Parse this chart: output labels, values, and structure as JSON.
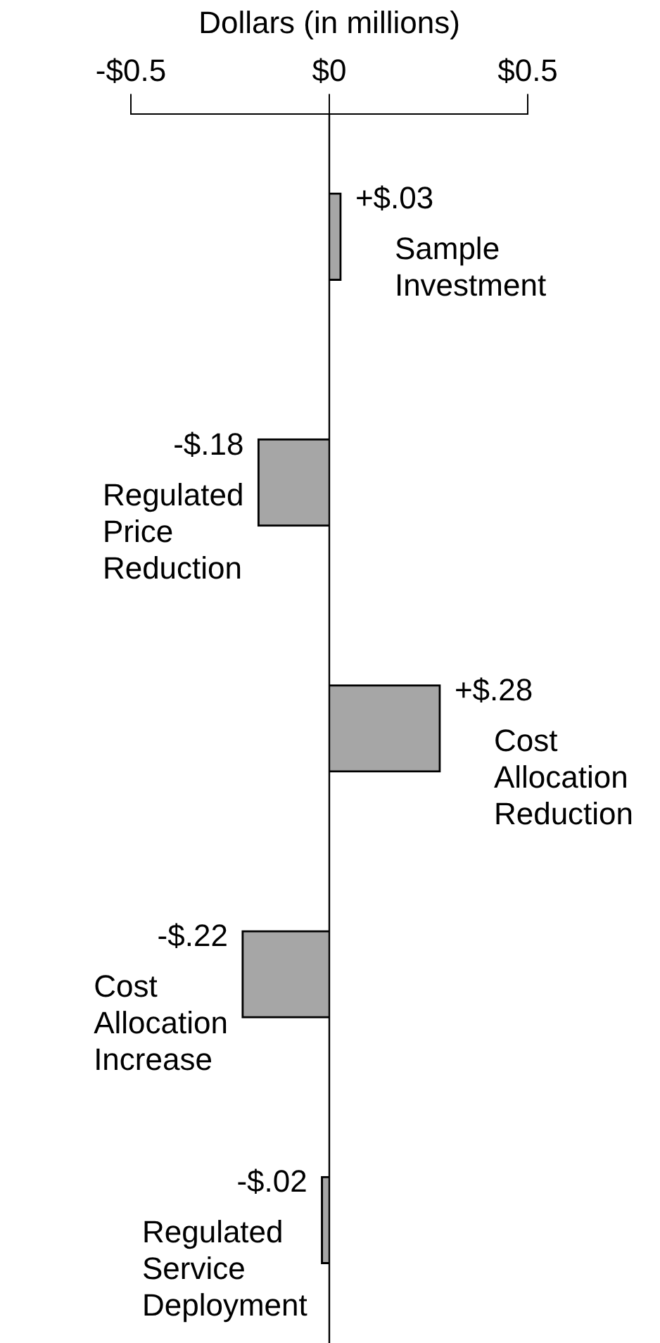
{
  "chart_data": {
    "type": "bar",
    "orientation": "horizontal",
    "xlabel": "Dollars (in millions)",
    "categories": [
      "Sample Investment",
      "Regulated Price Reduction",
      "Cost Allocation Reduction",
      "Cost Allocation Increase",
      "Regulated Service Deployment"
    ],
    "values": [
      0.03,
      -0.18,
      0.28,
      -0.22,
      -0.02
    ],
    "value_labels": [
      "+$.03",
      "-$.18",
      "+$.28",
      "-$.22",
      "-$.02"
    ],
    "color": "#a6a6a6",
    "xlim": [
      -0.5,
      0.5
    ],
    "xticks": [
      {
        "value": -0.5,
        "label": "-$0.5"
      },
      {
        "value": 0,
        "label": "$0"
      },
      {
        "value": 0.5,
        "label": "$0.5"
      }
    ],
    "ref_lines": [
      {
        "axis": "x",
        "value": 0,
        "color": "#000000"
      }
    ],
    "grid": false,
    "legend": false
  }
}
